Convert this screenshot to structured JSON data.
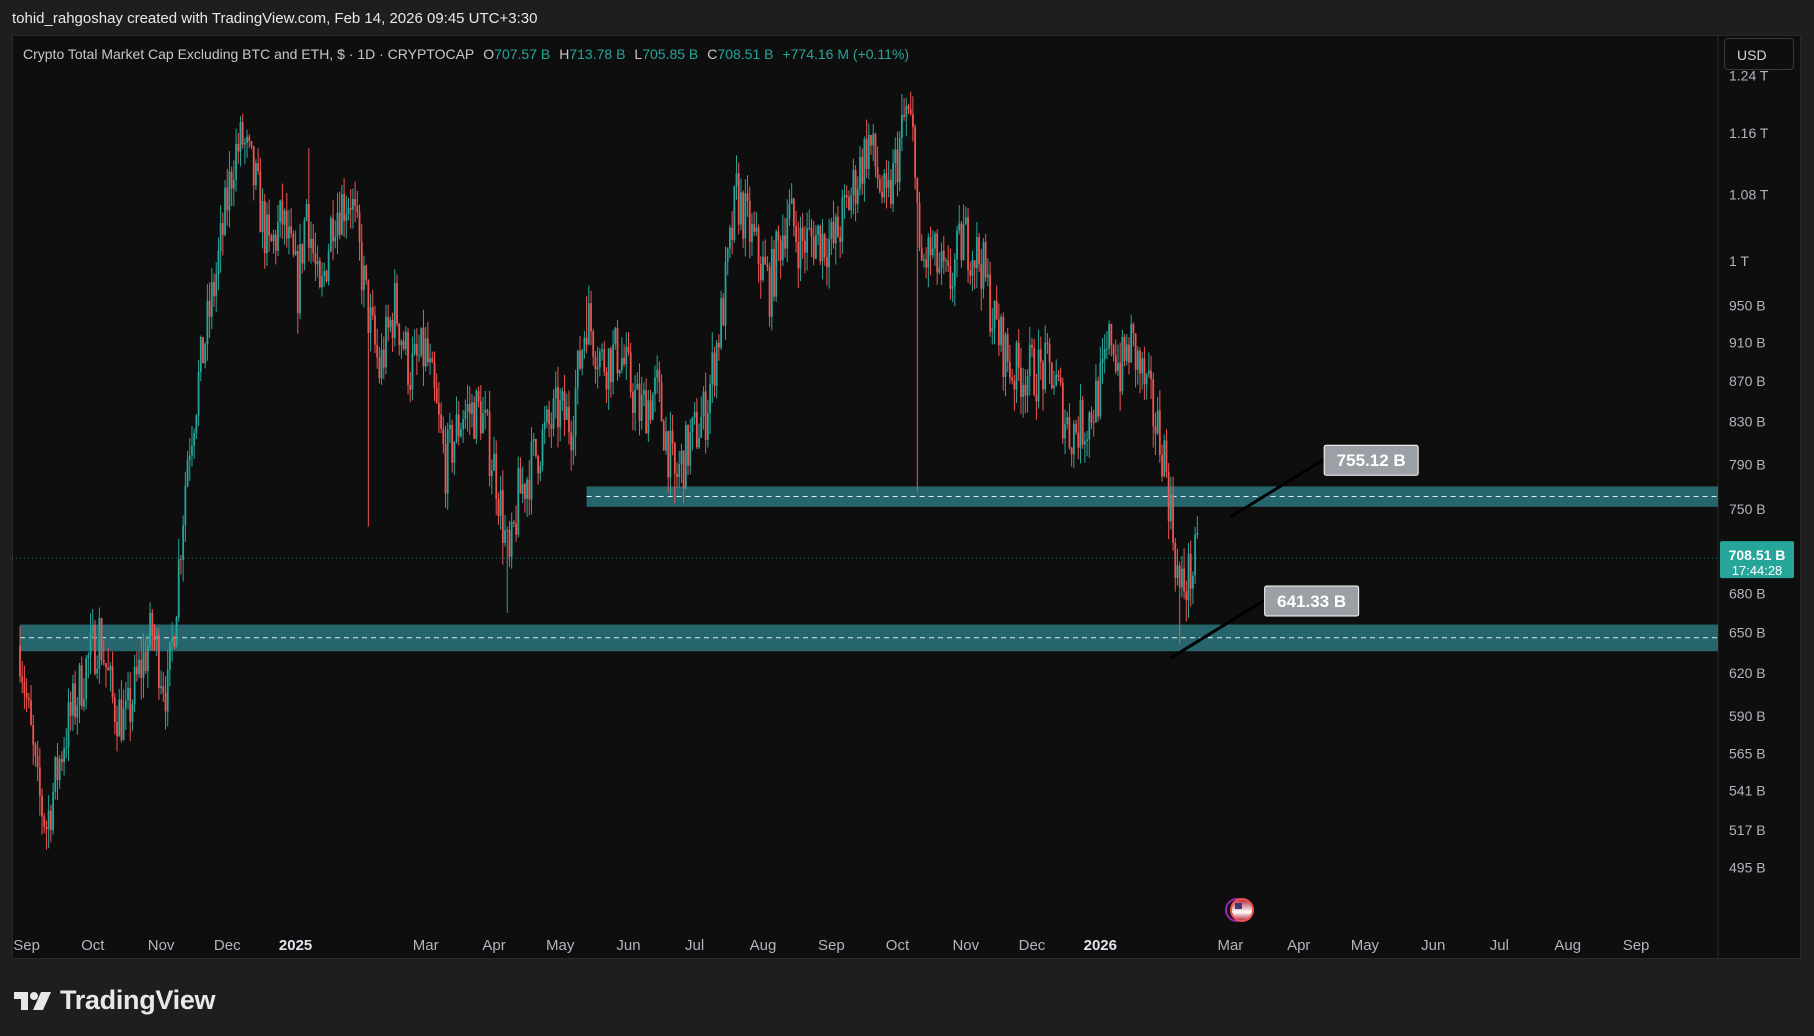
{
  "header": {
    "attribution": "tohid_rahgoshay created with TradingView.com, Feb 14, 2026 09:45 UTC+3:30"
  },
  "legend": {
    "symbol": "Crypto Total Market Cap Excluding BTC and ETH, $ · 1D · CRYPTOCAP",
    "open_label": "O",
    "open": "707.57 B",
    "high_label": "H",
    "high": "713.78 B",
    "low_label": "L",
    "low": "705.85 B",
    "close_label": "C",
    "close": "708.51 B",
    "change": "+774.16 M (+0.11%)"
  },
  "currency_button": "USD",
  "brand": {
    "name": "TradingView"
  },
  "colors": {
    "up": "#26a69a",
    "down": "#ef5350",
    "zone": "#2e7d86",
    "background": "#0e0e0e"
  },
  "chart_data": {
    "type": "candlestick",
    "interval": "1D",
    "scale": "log",
    "price_axis_ticks": [
      "1.24 T",
      "1.16 T",
      "1.08 T",
      "1 T",
      "950 B",
      "910 B",
      "870 B",
      "830 B",
      "790 B",
      "750 B",
      "680 B",
      "650 B",
      "620 B",
      "590 B",
      "565 B",
      "541 B",
      "517 B",
      "495 B"
    ],
    "price_tick_values": [
      1240,
      1160,
      1080,
      1000,
      950,
      910,
      870,
      830,
      790,
      750,
      680,
      650,
      620,
      590,
      565,
      541,
      517,
      495
    ],
    "time_axis_ticks": [
      "Sep",
      "Oct",
      "Nov",
      "Dec",
      "2025",
      "Mar",
      "Apr",
      "May",
      "Jun",
      "Jul",
      "Aug",
      "Sep",
      "Oct",
      "Nov",
      "Dec",
      "2026",
      "Mar",
      "Apr",
      "May",
      "Jun",
      "Jul",
      "Aug",
      "Sep"
    ],
    "time_tick_dates": [
      "2024-09-01",
      "2024-10-01",
      "2024-11-01",
      "2024-12-01",
      "2025-01-01",
      "2025-03-01",
      "2025-04-01",
      "2025-05-01",
      "2025-06-01",
      "2025-07-01",
      "2025-08-01",
      "2025-09-01",
      "2025-10-01",
      "2025-11-01",
      "2025-12-01",
      "2026-01-01",
      "2026-03-01",
      "2026-04-01",
      "2026-05-01",
      "2026-06-01",
      "2026-07-01",
      "2026-08-01",
      "2026-09-01"
    ],
    "bold_time_ticks": [
      "2025",
      "2026"
    ],
    "x_range": [
      "2024-08-29",
      "2026-09-30"
    ],
    "y_range": [
      470,
      1270
    ],
    "current_price": {
      "label": "708.51 B",
      "countdown": "17:44:28",
      "value": 708.51
    },
    "zones": [
      {
        "start": "2025-05-13",
        "top": 770,
        "bottom": 752,
        "mid": 761
      },
      {
        "start": "2024-08-29",
        "top": 656,
        "bottom": 636,
        "mid": 646
      }
    ],
    "callouts": [
      {
        "label": "755.12 B",
        "date": "2026-04-08",
        "value": 755.12
      },
      {
        "label": "641.33 B",
        "date": "2026-03-12",
        "value": 641.33
      }
    ],
    "price_path": [
      [
        "2024-08-29",
        640
      ],
      [
        "2024-09-06",
        540
      ],
      [
        "2024-09-10",
        520
      ],
      [
        "2024-09-18",
        575
      ],
      [
        "2024-09-28",
        625
      ],
      [
        "2024-10-04",
        650
      ],
      [
        "2024-10-10",
        600
      ],
      [
        "2024-10-16",
        585
      ],
      [
        "2024-10-22",
        620
      ],
      [
        "2024-10-28",
        650
      ],
      [
        "2024-11-04",
        605
      ],
      [
        "2024-11-08",
        680
      ],
      [
        "2024-11-13",
        800
      ],
      [
        "2024-11-20",
        900
      ],
      [
        "2024-11-27",
        1000
      ],
      [
        "2024-12-04",
        1130
      ],
      [
        "2024-12-08",
        1150
      ],
      [
        "2024-12-14",
        1090
      ],
      [
        "2024-12-20",
        1010
      ],
      [
        "2024-12-26",
        1050
      ],
      [
        "2025-01-02",
        970
      ],
      [
        "2025-01-06",
        1070
      ],
      [
        "2025-01-12",
        950
      ],
      [
        "2025-01-18",
        1060
      ],
      [
        "2025-01-26",
        1080
      ],
      [
        "2025-02-03",
        940
      ],
      [
        "2025-02-08",
        880
      ],
      [
        "2025-02-15",
        950
      ],
      [
        "2025-02-22",
        880
      ],
      [
        "2025-03-01",
        900
      ],
      [
        "2025-03-10",
        790
      ],
      [
        "2025-03-18",
        840
      ],
      [
        "2025-03-26",
        840
      ],
      [
        "2025-04-02",
        780
      ],
      [
        "2025-04-08",
        700
      ],
      [
        "2025-04-12",
        760
      ],
      [
        "2025-04-22",
        810
      ],
      [
        "2025-04-30",
        840
      ],
      [
        "2025-05-06",
        830
      ],
      [
        "2025-05-13",
        940
      ],
      [
        "2025-05-20",
        890
      ],
      [
        "2025-05-28",
        900
      ],
      [
        "2025-06-06",
        840
      ],
      [
        "2025-06-14",
        860
      ],
      [
        "2025-06-22",
        775
      ],
      [
        "2025-06-29",
        810
      ],
      [
        "2025-07-06",
        840
      ],
      [
        "2025-07-14",
        950
      ],
      [
        "2025-07-20",
        1080
      ],
      [
        "2025-07-28",
        1020
      ],
      [
        "2025-08-04",
        970
      ],
      [
        "2025-08-12",
        1060
      ],
      [
        "2025-08-18",
        1020
      ],
      [
        "2025-08-26",
        1030
      ],
      [
        "2025-09-02",
        1020
      ],
      [
        "2025-09-10",
        1080
      ],
      [
        "2025-09-18",
        1150
      ],
      [
        "2025-09-26",
        1060
      ],
      [
        "2025-10-01",
        1130
      ],
      [
        "2025-10-05",
        1190
      ],
      [
        "2025-10-09",
        1140
      ],
      [
        "2025-10-11",
        990
      ],
      [
        "2025-10-16",
        1010
      ],
      [
        "2025-10-24",
        970
      ],
      [
        "2025-10-31",
        1030
      ],
      [
        "2025-11-08",
        1000
      ],
      [
        "2025-11-14",
        930
      ],
      [
        "2025-11-22",
        880
      ],
      [
        "2025-12-01",
        880
      ],
      [
        "2025-12-10",
        880
      ],
      [
        "2025-12-18",
        820
      ],
      [
        "2025-12-26",
        830
      ],
      [
        "2026-01-02",
        870
      ],
      [
        "2026-01-06",
        920
      ],
      [
        "2026-01-10",
        880
      ],
      [
        "2026-01-15",
        910
      ],
      [
        "2026-01-22",
        860
      ],
      [
        "2026-01-30",
        800
      ],
      [
        "2026-02-03",
        730
      ],
      [
        "2026-02-06",
        680
      ],
      [
        "2026-02-09",
        690
      ],
      [
        "2026-02-12",
        700
      ],
      [
        "2026-02-14",
        708.51
      ]
    ],
    "wick_extremes": [
      {
        "date": "2024-09-09",
        "low": 515
      },
      {
        "date": "2024-10-05",
        "high": 652
      },
      {
        "date": "2024-12-06",
        "high": 1160
      },
      {
        "date": "2025-01-07",
        "high": 1140
      },
      {
        "date": "2025-02-03",
        "low": 735
      },
      {
        "date": "2025-04-07",
        "low": 665
      },
      {
        "date": "2025-05-13",
        "high": 960
      },
      {
        "date": "2025-06-22",
        "low": 755
      },
      {
        "date": "2025-10-06",
        "high": 1200
      },
      {
        "date": "2025-10-10",
        "low": 765
      },
      {
        "date": "2026-01-06",
        "high": 930
      },
      {
        "date": "2026-02-06",
        "low": 641.33
      }
    ]
  }
}
